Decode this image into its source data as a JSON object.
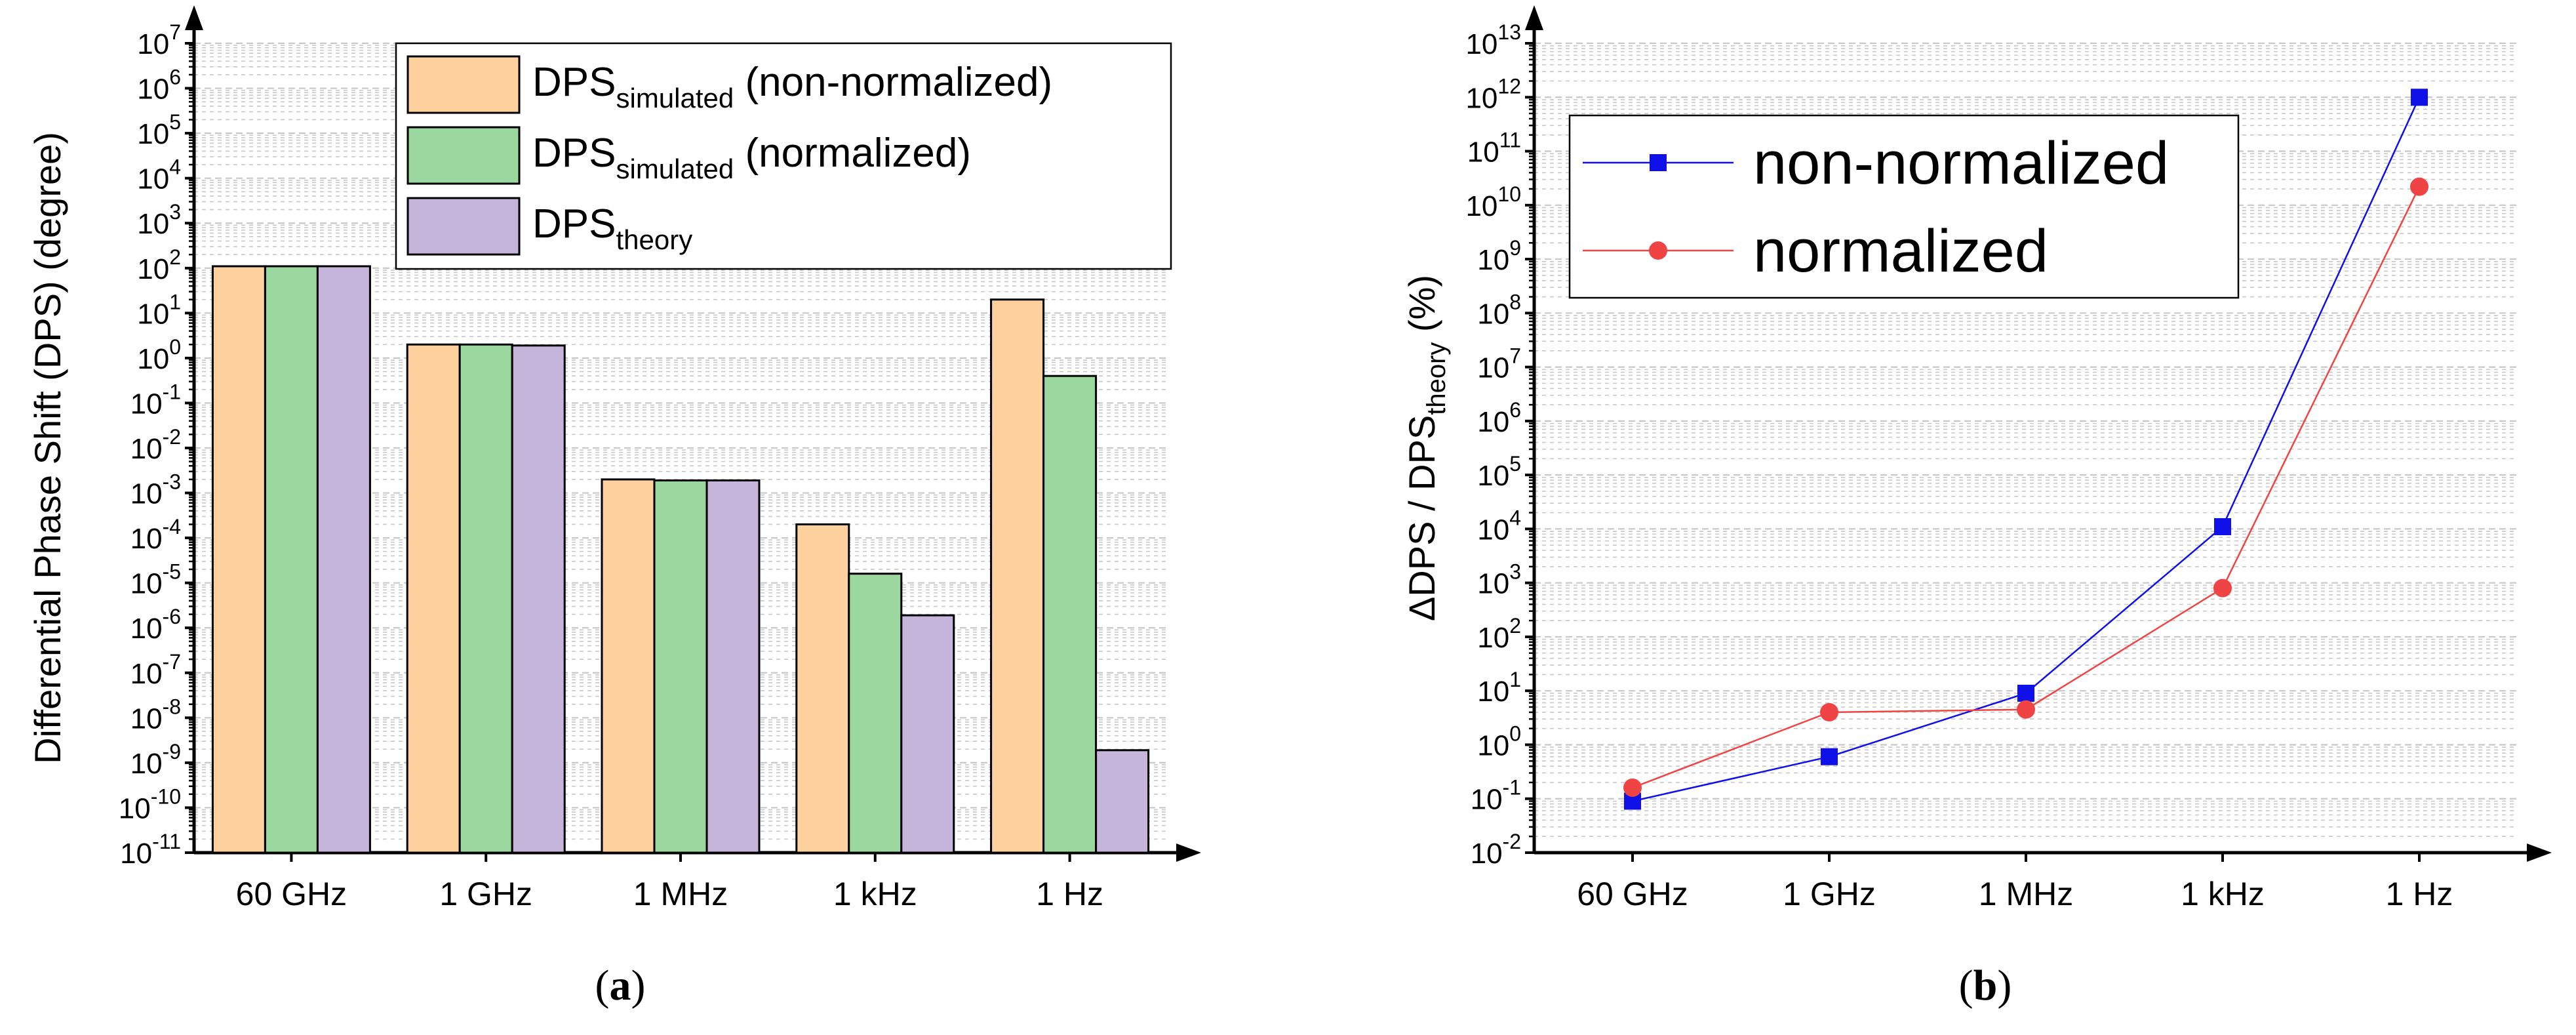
{
  "colors": {
    "non_normalized_bar": "#FDD09E",
    "normalized_bar": "#9AD8A0",
    "theory_bar": "#C6B5DA",
    "non_normalized_line": "#1010E8",
    "normalized_line": "#F04444",
    "grid": "#c8c8c8"
  },
  "panels": {
    "a": {
      "label_open": "(",
      "label_letter": "a",
      "label_close": ")"
    },
    "b": {
      "label_open": "(",
      "label_letter": "b",
      "label_close": ")"
    }
  },
  "chart_data": [
    {
      "type": "bar",
      "id": "a",
      "yscale": "log",
      "ylim_exp": [
        -11,
        7
      ],
      "ylabel": "Differential Phase Shift (DPS) (degree)",
      "categories": [
        "60 GHz",
        "1 GHz",
        "1 MHz",
        "1 kHz",
        "1 Hz"
      ],
      "y_ticks": [
        {
          "base": "10",
          "exp": "-11"
        },
        {
          "base": "10",
          "exp": "-10"
        },
        {
          "base": "10",
          "exp": "-9"
        },
        {
          "base": "10",
          "exp": "-8"
        },
        {
          "base": "10",
          "exp": "-7"
        },
        {
          "base": "10",
          "exp": "-6"
        },
        {
          "base": "10",
          "exp": "-5"
        },
        {
          "base": "10",
          "exp": "-4"
        },
        {
          "base": "10",
          "exp": "-3"
        },
        {
          "base": "10",
          "exp": "-2"
        },
        {
          "base": "10",
          "exp": "-1"
        },
        {
          "base": "10",
          "exp": "0"
        },
        {
          "base": "10",
          "exp": "1"
        },
        {
          "base": "10",
          "exp": "2"
        },
        {
          "base": "10",
          "exp": "3"
        },
        {
          "base": "10",
          "exp": "4"
        },
        {
          "base": "10",
          "exp": "5"
        },
        {
          "base": "10",
          "exp": "6"
        },
        {
          "base": "10",
          "exp": "7"
        }
      ],
      "series": [
        {
          "name": "DPS simulated (non-normalized)",
          "main": "DPS",
          "sub": "simulated",
          "suffix": " (non-normalized)",
          "color_key": "non_normalized_bar",
          "values": [
            110,
            2,
            0.002,
            0.0002,
            20
          ]
        },
        {
          "name": "DPS simulated (normalized)",
          "main": "DPS",
          "sub": "simulated",
          "suffix": " (normalized)",
          "color_key": "normalized_bar",
          "values": [
            110,
            2,
            0.0019,
            1.6e-05,
            0.4
          ]
        },
        {
          "name": "DPS theory",
          "main": "DPS",
          "sub": "theory",
          "suffix": "",
          "color_key": "theory_bar",
          "values": [
            110,
            1.9,
            0.0019,
            1.9e-06,
            1.9e-09
          ]
        }
      ],
      "legend_position": "top-right"
    },
    {
      "type": "line",
      "id": "b",
      "yscale": "log",
      "ylim_exp": [
        -2,
        13
      ],
      "ylabel_main": "ΔDPS / DPS",
      "ylabel_sub": "theory",
      "ylabel_suffix": " (%)",
      "categories": [
        "60 GHz",
        "1 GHz",
        "1 MHz",
        "1 kHz",
        "1 Hz"
      ],
      "y_ticks": [
        {
          "base": "10",
          "exp": "-2"
        },
        {
          "base": "10",
          "exp": "-1"
        },
        {
          "base": "10",
          "exp": "0"
        },
        {
          "base": "10",
          "exp": "1"
        },
        {
          "base": "10",
          "exp": "2"
        },
        {
          "base": "10",
          "exp": "3"
        },
        {
          "base": "10",
          "exp": "4"
        },
        {
          "base": "10",
          "exp": "5"
        },
        {
          "base": "10",
          "exp": "6"
        },
        {
          "base": "10",
          "exp": "7"
        },
        {
          "base": "10",
          "exp": "8"
        },
        {
          "base": "10",
          "exp": "9"
        },
        {
          "base": "10",
          "exp": "10"
        },
        {
          "base": "10",
          "exp": "11"
        },
        {
          "base": "10",
          "exp": "12"
        },
        {
          "base": "10",
          "exp": "13"
        }
      ],
      "series": [
        {
          "name": "non-normalized",
          "marker": "square",
          "color_key": "non_normalized_line",
          "values": [
            0.09,
            0.6,
            9,
            11000,
            1000000000000
          ]
        },
        {
          "name": "normalized",
          "marker": "circle",
          "color_key": "normalized_line",
          "values": [
            0.16,
            4,
            4.5,
            800,
            22000000000
          ]
        }
      ],
      "legend_position": "top-left"
    }
  ]
}
